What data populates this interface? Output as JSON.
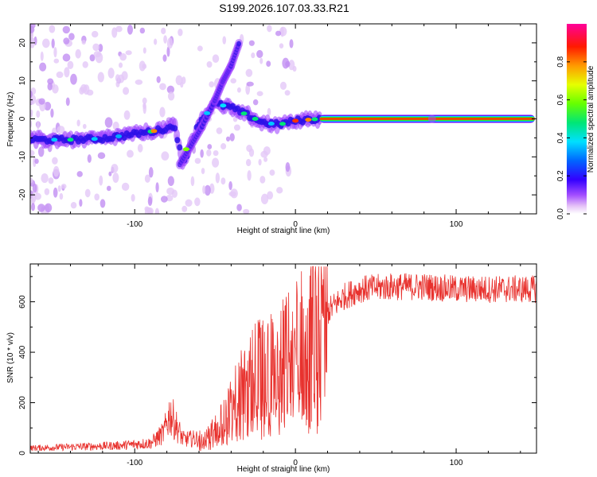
{
  "figure": {
    "title": "S199.2026.107.03.33.R21"
  },
  "chart_data": [
    {
      "type": "heatmap",
      "name": "spectrogram",
      "xlabel": "Height of straight line (km)",
      "ylabel": "Frequency (Hz)",
      "xlim": [
        -165,
        150
      ],
      "ylim": [
        -25,
        25
      ],
      "xticks": [
        -100,
        0,
        100
      ],
      "yticks": [
        -20,
        -10,
        0,
        10,
        20
      ],
      "colorbar": {
        "label": "Normalized spectral amplitude",
        "range": [
          0,
          1
        ],
        "ticks": [
          0.0,
          0.2,
          0.4,
          0.6,
          0.8
        ],
        "colormap": [
          "#ffffff",
          "#d9a6f5",
          "#8f2cff",
          "#2b00ff",
          "#0077ff",
          "#00e5ff",
          "#00e676",
          "#7dff00",
          "#ffff00",
          "#ff9000",
          "#ff0000",
          "#ff00a0"
        ]
      },
      "ridge": {
        "description_points_x": [
          -165,
          -140,
          -120,
          -100,
          -85,
          -75,
          -70,
          -60,
          -50,
          -40,
          -30,
          -20,
          -10,
          0,
          15,
          150
        ],
        "description_points_y": [
          -5.5,
          -5.5,
          -5.2,
          -4.0,
          -3.0,
          -2.0,
          -12.0,
          -1.0,
          4.0,
          3.0,
          1.0,
          -1.0,
          -1.5,
          -0.5,
          0.0,
          0.0
        ],
        "branch_x": [
          -72,
          -65,
          -58,
          -50,
          -45,
          -40,
          -35
        ],
        "branch_y": [
          -12,
          -7,
          -2,
          5,
          10,
          14,
          20
        ]
      }
    },
    {
      "type": "line",
      "name": "snr",
      "xlabel": "Height of straight line (km)",
      "ylabel": "SNR (10 * v/v)",
      "xlim": [
        -165,
        150
      ],
      "ylim": [
        0,
        750
      ],
      "xticks": [
        -100,
        0,
        100
      ],
      "yticks": [
        0,
        200,
        400,
        600
      ],
      "color": "#e8322e",
      "envelope": {
        "x": [
          -165,
          -110,
          -90,
          -82,
          -78,
          -70,
          -55,
          -40,
          -30,
          -20,
          -10,
          0,
          10,
          20,
          30,
          40,
          60,
          80,
          100,
          120,
          150
        ],
        "y": [
          20,
          30,
          40,
          80,
          160,
          55,
          60,
          180,
          300,
          330,
          360,
          420,
          470,
          560,
          620,
          650,
          660,
          660,
          650,
          650,
          650
        ]
      }
    }
  ]
}
